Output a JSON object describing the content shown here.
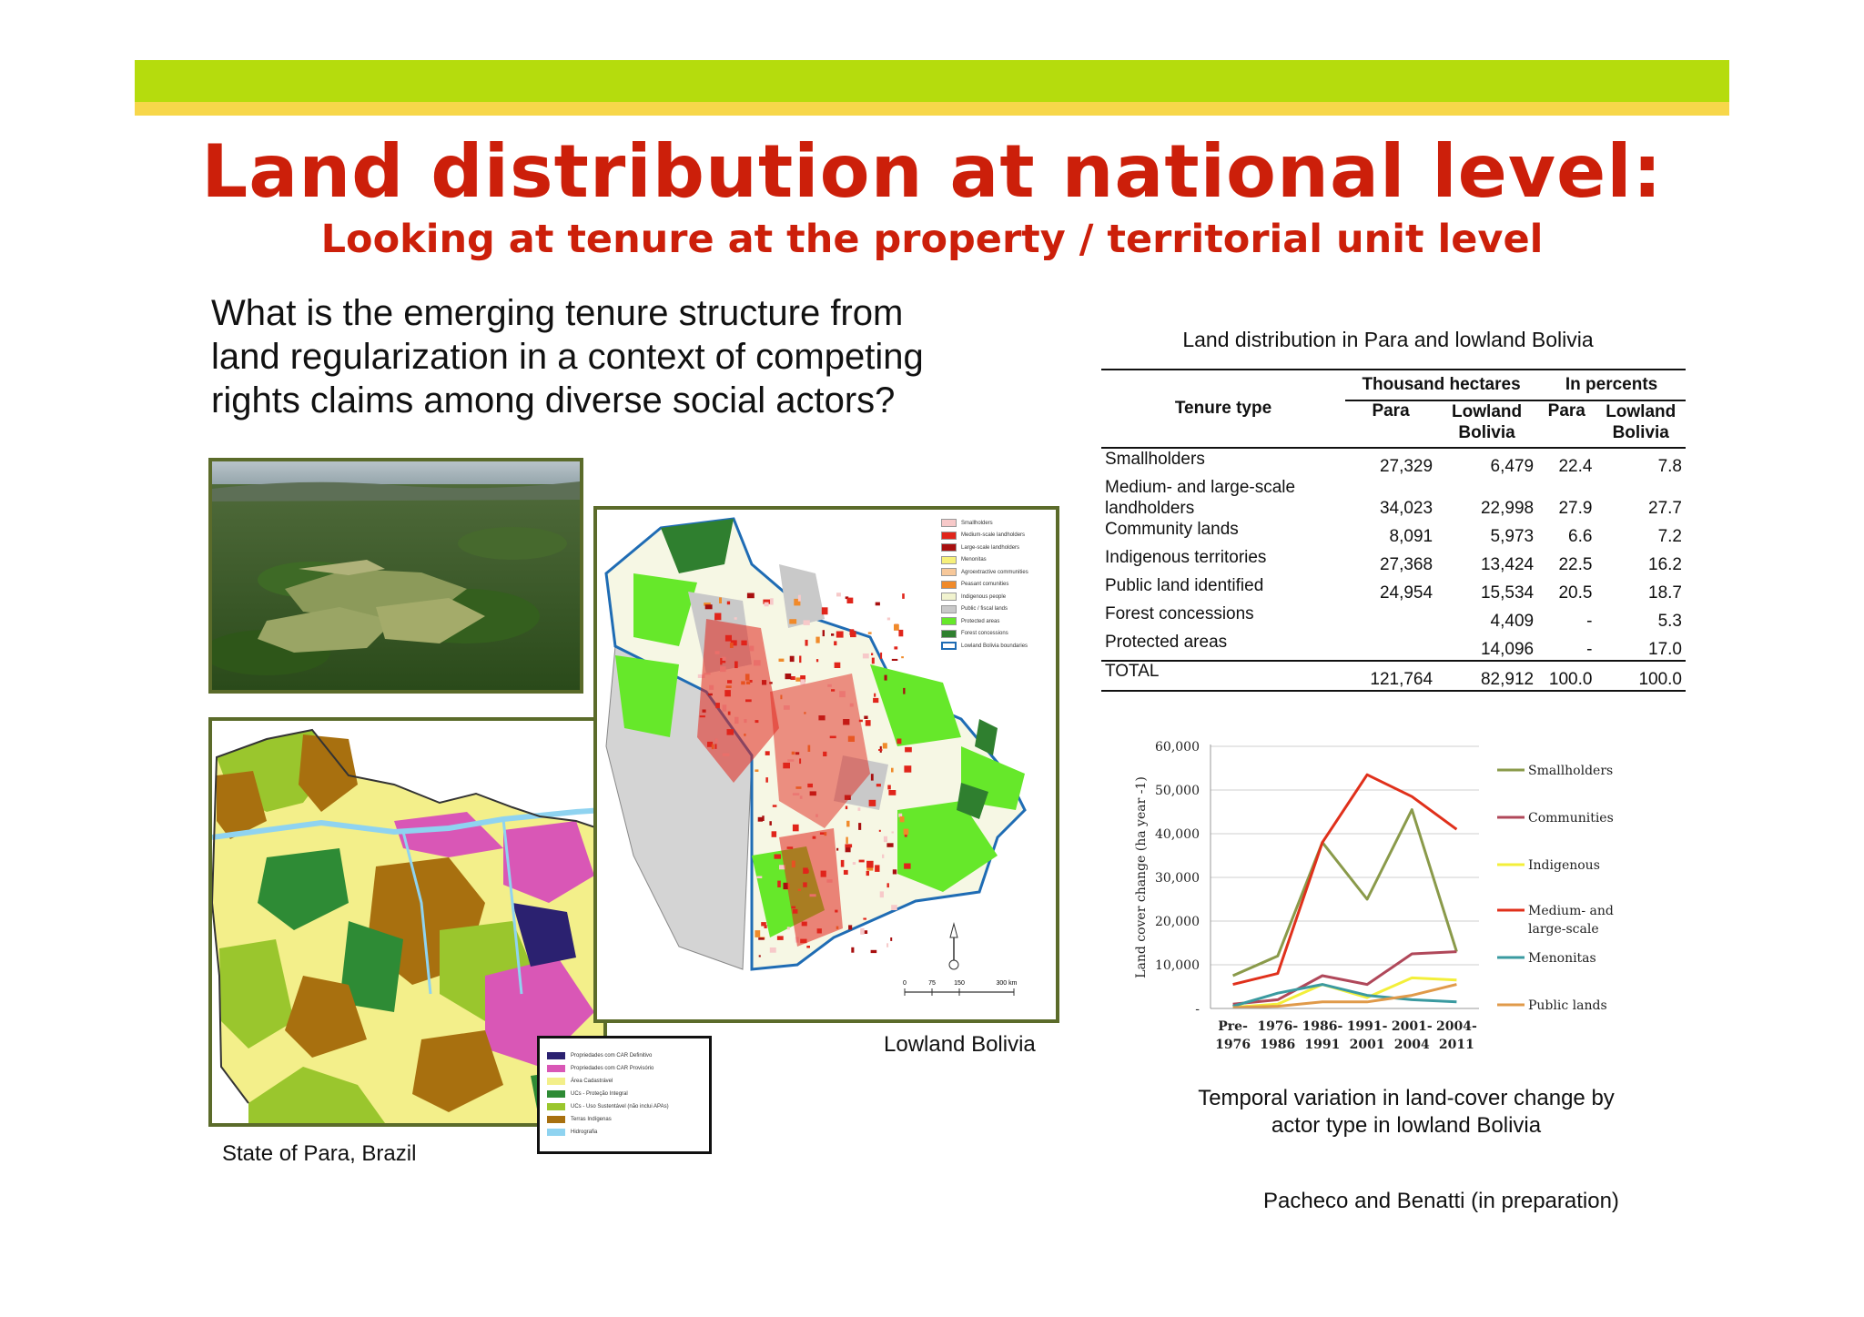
{
  "title": "Land distribution at national level:",
  "subtitle": "Looking at tenure at the property / territorial unit level",
  "question": [
    " What is the emerging tenure structure from",
    "land regularization in a context of competing",
    "rights claims among diverse social actors?"
  ],
  "captions": {
    "para": "State of Para, Brazil",
    "bolivia": "Lowland Bolivia",
    "chart": [
      "Temporal variation in land-cover change by",
      "actor type in lowland Bolivia"
    ],
    "source": "Pacheco and Benatti (in preparation)"
  },
  "para_legend": [
    {
      "label": "Propriedades com CAR Definitivo",
      "color": "#2b2170"
    },
    {
      "label": "Propriedades com CAR Provisório",
      "color": "#d957b6"
    },
    {
      "label": "Área Cadastrável",
      "color": "#f3ef8a"
    },
    {
      "label": "UCs - Proteção Integral",
      "color": "#2e8b35"
    },
    {
      "label": "UCs - Uso Sustentável (não inclui APAs)",
      "color": "#9ac62d"
    },
    {
      "label": "Terras Indígenas",
      "color": "#a8700f"
    },
    {
      "label": "Hidrografia",
      "color": "#8fd3f0"
    }
  ],
  "bolivia_legend": [
    {
      "label": "Smallholders",
      "color": "#f7c9c9"
    },
    {
      "label": "Medium-scale landholders",
      "color": "#e0251b"
    },
    {
      "label": "Large-scale landholders",
      "color": "#a80f0f"
    },
    {
      "label": "Menonitas",
      "color": "#f6f07a"
    },
    {
      "label": "Agroextractive communities",
      "color": "#f7c89a"
    },
    {
      "label": "Peasant comunities",
      "color": "#f08a2a"
    },
    {
      "label": "Indigenous people",
      "color": "#f1f3cf"
    },
    {
      "label": "Public / fiscal lands",
      "color": "#c9c9c9"
    },
    {
      "label": "Protected areas",
      "color": "#66e82a"
    },
    {
      "label": "Forest concessions",
      "color": "#2f7f2f"
    },
    {
      "label": "Lowland Bolivia boundaries",
      "color": "#ffffff"
    }
  ],
  "bolivia_scale": [
    "0",
    "75",
    "150",
    "300 km"
  ],
  "table": {
    "title": "Land distribution in Para and lowland Bolivia",
    "header_tenure": "Tenure type",
    "group_thousand": "Thousand hectares",
    "group_percent": "In percents",
    "col_para": "Para",
    "col_lowland": [
      "Lowland",
      "Bolivia"
    ],
    "rows": [
      {
        "type": [
          "Smallholders"
        ],
        "para_ha": "27,329",
        "bol_ha": "6,479",
        "para_pct": "22.4",
        "bol_pct": "7.8"
      },
      {
        "type": [
          "Medium- and large-scale",
          "landholders"
        ],
        "para_ha": "34,023",
        "bol_ha": "22,998",
        "para_pct": "27.9",
        "bol_pct": "27.7"
      },
      {
        "type": [
          "Community lands"
        ],
        "para_ha": "8,091",
        "bol_ha": "5,973",
        "para_pct": "6.6",
        "bol_pct": "7.2"
      },
      {
        "type": [
          "Indigenous territories"
        ],
        "para_ha": "27,368",
        "bol_ha": "13,424",
        "para_pct": "22.5",
        "bol_pct": "16.2"
      },
      {
        "type": [
          "Public land identified"
        ],
        "para_ha": "24,954",
        "bol_ha": "15,534",
        "para_pct": "20.5",
        "bol_pct": "18.7"
      },
      {
        "type": [
          "Forest concessions"
        ],
        "para_ha": "",
        "bol_ha": "4,409",
        "para_pct": "-",
        "bol_pct": "5.3"
      },
      {
        "type": [
          "Protected areas"
        ],
        "para_ha": "",
        "bol_ha": "14,096",
        "para_pct": "-",
        "bol_pct": "17.0"
      }
    ],
    "total": {
      "type": "TOTAL",
      "para_ha": "121,764",
      "bol_ha": "82,912",
      "para_pct": "100.0",
      "bol_pct": "100.0"
    }
  },
  "chart_data": {
    "type": "line",
    "title": "",
    "ylabel": "Land cover change (ha year -1)",
    "xlabel": "",
    "categories": [
      [
        "Pre-",
        "1976"
      ],
      [
        "1976-",
        "1986"
      ],
      [
        "1986-",
        "1991"
      ],
      [
        "1991-",
        "2001"
      ],
      [
        "2001-",
        "2004"
      ],
      [
        "2004-",
        "2011"
      ]
    ],
    "ylim": [
      0,
      60000
    ],
    "yticks": [
      "-",
      "10,000",
      "20,000",
      "30,000",
      "40,000",
      "50,000",
      "60,000"
    ],
    "legend_position": "right",
    "series": [
      {
        "name": "Smallholders",
        "color": "#8a9a4a",
        "values": [
          7500,
          12000,
          38000,
          25000,
          45500,
          13000
        ]
      },
      {
        "name": "Communities",
        "color": "#b0485a",
        "values": [
          1000,
          2000,
          7500,
          5500,
          12500,
          13000
        ]
      },
      {
        "name": "Indigenous",
        "color": "#f3ef3a",
        "values": [
          300,
          1000,
          5500,
          2500,
          7000,
          6500
        ]
      },
      {
        "name": "Medium- and large-scale",
        "color": "#e0301b",
        "values": [
          5500,
          8000,
          38000,
          53500,
          48500,
          41000
        ]
      },
      {
        "name": "Menonitas",
        "color": "#3a9aa0",
        "values": [
          500,
          3500,
          5500,
          3000,
          2000,
          1500
        ]
      },
      {
        "name": "Public lands",
        "color": "#e09a4a",
        "values": [
          200,
          500,
          1500,
          1500,
          3000,
          5500
        ]
      }
    ]
  }
}
